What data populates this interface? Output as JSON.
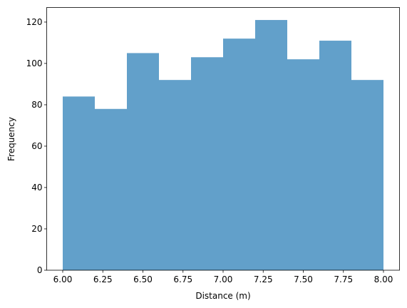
{
  "chart_data": {
    "type": "histogram",
    "xlabel": "Distance (m)",
    "ylabel": "Frequency",
    "bins": [
      6.0,
      6.2,
      6.4,
      6.6,
      6.8,
      7.0,
      7.2,
      7.4,
      7.6,
      7.8,
      8.0
    ],
    "values": [
      84,
      78,
      105,
      92,
      103,
      112,
      121,
      102,
      111,
      92
    ],
    "color": "#1f77b4",
    "alpha": 0.7,
    "xlim": [
      5.9,
      8.1
    ],
    "xticks": [
      {
        "value": 6.0,
        "label": "6.00"
      },
      {
        "value": 6.25,
        "label": "6.25"
      },
      {
        "value": 6.5,
        "label": "6.50"
      },
      {
        "value": 6.75,
        "label": "6.75"
      },
      {
        "value": 7.0,
        "label": "7.00"
      },
      {
        "value": 7.25,
        "label": "7.25"
      },
      {
        "value": 7.5,
        "label": "7.50"
      },
      {
        "value": 7.75,
        "label": "7.75"
      },
      {
        "value": 8.0,
        "label": "8.00"
      }
    ],
    "ylim": [
      0,
      127.05
    ],
    "yticks": [
      0,
      20,
      40,
      60,
      80,
      100,
      120
    ]
  }
}
